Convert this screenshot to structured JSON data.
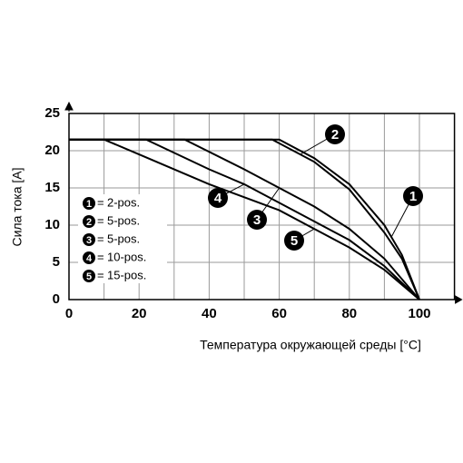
{
  "chart_data": {
    "type": "line",
    "x_label": "Температура окружающей среды [°C]",
    "y_label": "Сила тока [A]",
    "xlim": [
      0,
      110
    ],
    "ylim": [
      0,
      25
    ],
    "xticks": [
      0,
      20,
      40,
      60,
      80,
      100
    ],
    "yticks": [
      0,
      5,
      10,
      15,
      20,
      25
    ],
    "xgrid": [
      10,
      20,
      30,
      40,
      50,
      60,
      70,
      80,
      90,
      100
    ],
    "grid": true,
    "series": [
      {
        "marker": "1",
        "name": "2-pos.",
        "color": "#000000",
        "x": [
          0,
          60,
          70,
          80,
          90,
          95,
          100
        ],
        "values": [
          21.5,
          21.5,
          19,
          15.5,
          10,
          6,
          0
        ]
      },
      {
        "marker": "2",
        "name": "5-pos.",
        "color": "#000000",
        "x": [
          0,
          58,
          70,
          80,
          90,
          95,
          100
        ],
        "values": [
          21.5,
          21.5,
          18.5,
          14.8,
          9,
          5.5,
          0
        ]
      },
      {
        "marker": "3",
        "name": "5-pos.",
        "color": "#000000",
        "x": [
          0,
          33,
          50,
          60,
          70,
          80,
          90,
          100
        ],
        "values": [
          21.5,
          21.5,
          17.5,
          15,
          12.5,
          9.5,
          5.5,
          0
        ]
      },
      {
        "marker": "4",
        "name": "10-pos.",
        "color": "#000000",
        "x": [
          0,
          22,
          40,
          50,
          60,
          70,
          80,
          90,
          100
        ],
        "values": [
          21.5,
          21.5,
          17.5,
          15.5,
          13,
          10.5,
          8,
          4.5,
          0
        ]
      },
      {
        "marker": "5",
        "name": "15-pos.",
        "color": "#000000",
        "x": [
          0,
          10,
          20,
          40,
          60,
          70,
          80,
          90,
          100
        ],
        "values": [
          21.5,
          21.5,
          19.5,
          15.5,
          12,
          9.5,
          7,
          4,
          0
        ]
      }
    ]
  }
}
